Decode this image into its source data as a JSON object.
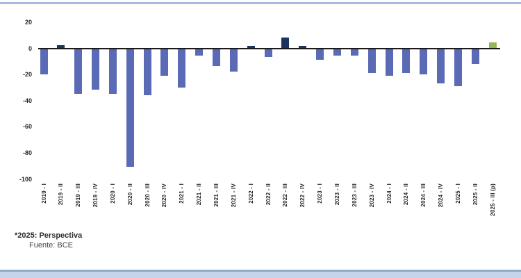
{
  "chart_data": {
    "type": "bar",
    "title": "",
    "xlabel": "",
    "ylabel": "",
    "categories": [
      "2019 - I",
      "2019 - II",
      "2019 - III",
      "2019 - IV",
      "2020 - I",
      "2020 - II",
      "2020 - III",
      "2020 - IV",
      "2021 - I",
      "2021 - II",
      "2021 - III",
      "2021 - IV",
      "2022 - I",
      "2022 - II",
      "2022 - III",
      "2022 - IV",
      "2023 - I",
      "2023 - II",
      "2023 - III",
      "2023 - IV",
      "2024 - I",
      "2024 - II",
      "2024 - III",
      "2024 - IV",
      "2025 - I",
      "2025 - II",
      "2025 - III (p)"
    ],
    "values": [
      -19,
      2,
      -34,
      -31,
      -34,
      -90,
      -35,
      -20,
      -29,
      -5,
      -13,
      -17,
      1.5,
      -6,
      8,
      1.5,
      -8,
      -5,
      -5,
      -18,
      -20,
      -18,
      -19,
      -26,
      -28,
      -11,
      4
    ],
    "bar_colors": [
      "#5a6ab5",
      "#1c3461",
      "#5a6ab5",
      "#5a6ab5",
      "#5a6ab5",
      "#5a6ab5",
      "#5a6ab5",
      "#5a6ab5",
      "#5a6ab5",
      "#5a6ab5",
      "#5a6ab5",
      "#5a6ab5",
      "#1c3461",
      "#5a6ab5",
      "#1c3461",
      "#1c3461",
      "#5a6ab5",
      "#5a6ab5",
      "#5a6ab5",
      "#5a6ab5",
      "#5a6ab5",
      "#5a6ab5",
      "#5a6ab5",
      "#5a6ab5",
      "#5a6ab5",
      "#5a6ab5",
      "#93b954"
    ],
    "y_ticks": [
      20,
      0,
      -20,
      -40,
      -60,
      -80,
      -100
    ],
    "ylim": [
      -100,
      20
    ],
    "grid": false,
    "legend": null,
    "palette": {
      "negative": "#5a6ab5",
      "positive": "#1c3461",
      "projection": "#93b954",
      "axis_line": "#1a1a1a",
      "top_border": "#a6badb",
      "bottom_border": "#93a9cc",
      "bottom_strip": "#c5d4ea"
    }
  },
  "footnote": {
    "line1": "*2025: Perspectiva",
    "line2": "Fuente: BCE"
  }
}
